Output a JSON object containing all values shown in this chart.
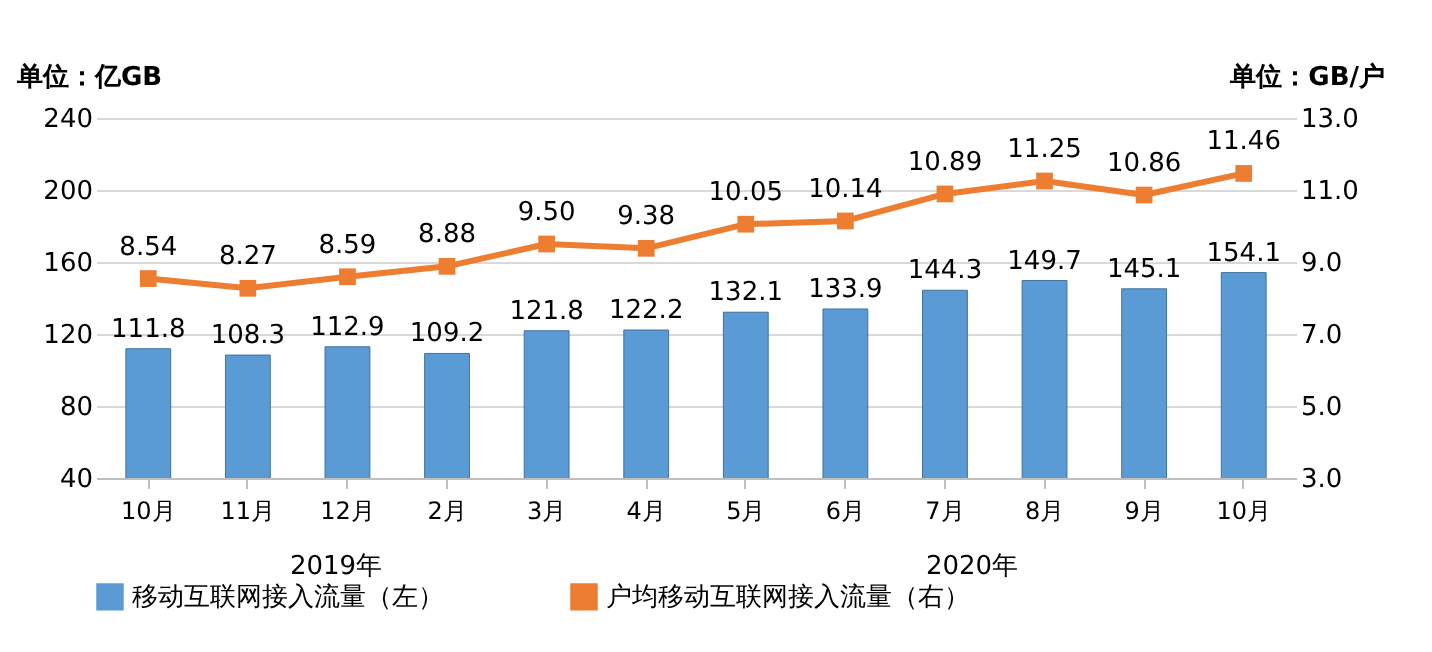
{
  "chart_data": {
    "type": "bar",
    "ylabel": "单位：亿GB",
    "y2label": "单位：GB/户",
    "categories": [
      "10月",
      "11月",
      "12月",
      "2月",
      "3月",
      "4月",
      "5月",
      "6月",
      "7月",
      "8月",
      "9月",
      "10月"
    ],
    "series": [
      {
        "name": "移动互联网接入流量（左）",
        "color": "#5b9bd5",
        "values": [
          111.8,
          108.3,
          112.9,
          109.2,
          121.8,
          122.2,
          132.1,
          133.9,
          144.3,
          149.7,
          145.1,
          154.1
        ],
        "value_labels": [
          "111.8",
          "108.3",
          "112.9",
          "109.2",
          "121.8",
          "122.2",
          "132.1",
          "133.9",
          "144.3",
          "149.7",
          "145.1",
          "154.1"
        ]
      },
      {
        "name": "户均移动互联网接入流量（右）",
        "type": "line",
        "axis": "y2",
        "color": "#ed7d31",
        "marker": "square",
        "values": [
          8.54,
          8.27,
          8.59,
          8.88,
          9.5,
          9.38,
          10.05,
          10.14,
          10.89,
          11.25,
          10.86,
          11.46
        ],
        "value_labels": [
          "8.54",
          "8.27",
          "8.59",
          "8.88",
          "9.50",
          "9.38",
          "10.05",
          "10.14",
          "10.89",
          "11.25",
          "10.86",
          "11.46"
        ]
      }
    ],
    "ylim": [
      40,
      240
    ],
    "yticks": [
      40,
      80,
      120,
      160,
      200,
      240
    ],
    "y2lim": [
      3,
      13
    ],
    "y2ticks": [
      {
        "value": 3,
        "label": "3.0"
      },
      {
        "value": 5,
        "label": "5.0"
      },
      {
        "value": 7,
        "label": "7.0"
      },
      {
        "value": 9,
        "label": "9.0"
      },
      {
        "value": 11,
        "label": "11.0"
      },
      {
        "value": 13,
        "label": "13.0"
      }
    ],
    "annotations": [
      "2019年",
      "2020年"
    ],
    "grid": "y",
    "legend": "bottom"
  }
}
